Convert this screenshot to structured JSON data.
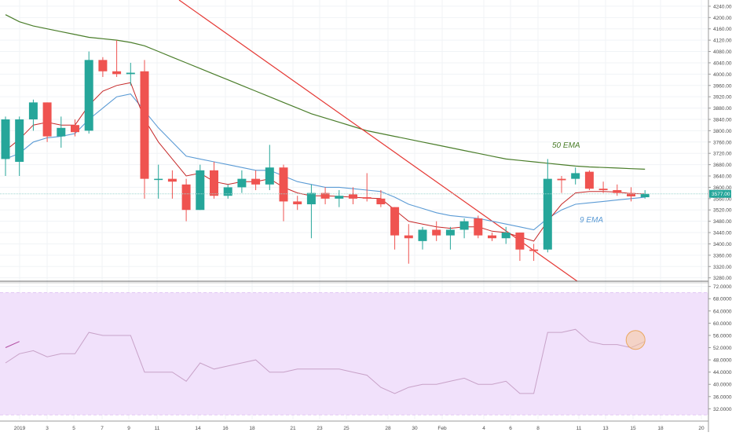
{
  "chart_data": [
    {
      "type": "candlestick",
      "title": "",
      "y_ticks": [
        3280,
        3320,
        3360,
        3400,
        3440,
        3480,
        3520,
        3560,
        3600,
        3640,
        3680,
        3720,
        3760,
        3800,
        3840,
        3880,
        3920,
        3960,
        4000,
        4040,
        4080,
        4120,
        4160,
        4200,
        4240
      ],
      "y_tick_labels": [
        "3280.00",
        "3320.00",
        "3360.00",
        "3400.00",
        "3440.00",
        "3480.00",
        "3520.00",
        "3560.00",
        "3600.00",
        "3640.00",
        "3680.00",
        "3720.00",
        "3760.00",
        "3800.00",
        "3840.00",
        "3880.00",
        "3920.00",
        "3960.00",
        "4000.00",
        "4040.00",
        "4080.00",
        "4120.00",
        "4160.00",
        "4200.00",
        "4240.00"
      ],
      "ylim": [
        3268,
        4262
      ],
      "current_price": 3577,
      "current_price_label": "3577.00",
      "colors": {
        "up": "#26a69a",
        "down": "#ef5350",
        "ema9": "#5b9bd5",
        "ema50": "#4a7d2a",
        "trendline": "#e53935",
        "ema9_short": "#c62828"
      },
      "candles": [
        {
          "o": 3700,
          "h": 3850,
          "l": 3640,
          "c": 3840
        },
        {
          "o": 3690,
          "h": 3850,
          "l": 3640,
          "c": 3840
        },
        {
          "o": 3840,
          "h": 3910,
          "l": 3800,
          "c": 3900
        },
        {
          "o": 3900,
          "h": 3900,
          "l": 3760,
          "c": 3780
        },
        {
          "o": 3780,
          "h": 3850,
          "l": 3740,
          "c": 3810
        },
        {
          "o": 3820,
          "h": 3840,
          "l": 3780,
          "c": 3795
        },
        {
          "o": 3800,
          "h": 4080,
          "l": 3790,
          "c": 4050
        },
        {
          "o": 4050,
          "h": 4060,
          "l": 3990,
          "c": 4010
        },
        {
          "o": 4010,
          "h": 4120,
          "l": 3990,
          "c": 4000
        },
        {
          "o": 4000,
          "h": 4040,
          "l": 3960,
          "c": 4005
        },
        {
          "o": 4010,
          "h": 4050,
          "l": 3560,
          "c": 3630
        },
        {
          "o": 3630,
          "h": 3680,
          "l": 3560,
          "c": 3630
        },
        {
          "o": 3630,
          "h": 3660,
          "l": 3560,
          "c": 3620
        },
        {
          "o": 3610,
          "h": 3630,
          "l": 3480,
          "c": 3520
        },
        {
          "o": 3520,
          "h": 3680,
          "l": 3520,
          "c": 3660
        },
        {
          "o": 3660,
          "h": 3690,
          "l": 3560,
          "c": 3570
        },
        {
          "o": 3570,
          "h": 3610,
          "l": 3560,
          "c": 3600
        },
        {
          "o": 3600,
          "h": 3660,
          "l": 3580,
          "c": 3630
        },
        {
          "o": 3630,
          "h": 3660,
          "l": 3590,
          "c": 3610
        },
        {
          "o": 3610,
          "h": 3750,
          "l": 3590,
          "c": 3670
        },
        {
          "o": 3670,
          "h": 3680,
          "l": 3480,
          "c": 3550
        },
        {
          "o": 3550,
          "h": 3570,
          "l": 3520,
          "c": 3540
        },
        {
          "o": 3540,
          "h": 3610,
          "l": 3420,
          "c": 3580
        },
        {
          "o": 3580,
          "h": 3600,
          "l": 3540,
          "c": 3560
        },
        {
          "o": 3560,
          "h": 3590,
          "l": 3530,
          "c": 3570
        },
        {
          "o": 3575,
          "h": 3600,
          "l": 3540,
          "c": 3560
        },
        {
          "o": 3565,
          "h": 3650,
          "l": 3550,
          "c": 3560
        },
        {
          "o": 3560,
          "h": 3590,
          "l": 3530,
          "c": 3540
        },
        {
          "o": 3530,
          "h": 3530,
          "l": 3380,
          "c": 3430
        },
        {
          "o": 3430,
          "h": 3470,
          "l": 3330,
          "c": 3420
        },
        {
          "o": 3410,
          "h": 3460,
          "l": 3380,
          "c": 3450
        },
        {
          "o": 3450,
          "h": 3480,
          "l": 3410,
          "c": 3430
        },
        {
          "o": 3430,
          "h": 3460,
          "l": 3380,
          "c": 3450
        },
        {
          "o": 3450,
          "h": 3490,
          "l": 3420,
          "c": 3480
        },
        {
          "o": 3490,
          "h": 3500,
          "l": 3420,
          "c": 3430
        },
        {
          "o": 3430,
          "h": 3440,
          "l": 3410,
          "c": 3420
        },
        {
          "o": 3420,
          "h": 3460,
          "l": 3400,
          "c": 3440
        },
        {
          "o": 3440,
          "h": 3440,
          "l": 3340,
          "c": 3380
        },
        {
          "o": 3380,
          "h": 3400,
          "l": 3340,
          "c": 3375
        },
        {
          "o": 3380,
          "h": 3700,
          "l": 3370,
          "c": 3630
        },
        {
          "o": 3630,
          "h": 3640,
          "l": 3580,
          "c": 3625
        },
        {
          "o": 3630,
          "h": 3670,
          "l": 3610,
          "c": 3650
        },
        {
          "o": 3655,
          "h": 3660,
          "l": 3590,
          "c": 3595
        },
        {
          "o": 3595,
          "h": 3620,
          "l": 3580,
          "c": 3590
        },
        {
          "o": 3590,
          "h": 3610,
          "l": 3570,
          "c": 3580
        },
        {
          "o": 3580,
          "h": 3600,
          "l": 3550,
          "c": 3568
        },
        {
          "o": 3565,
          "h": 3590,
          "l": 3560,
          "c": 3577
        }
      ],
      "ema9": [
        3700,
        3720,
        3760,
        3775,
        3780,
        3790,
        3840,
        3880,
        3920,
        3930,
        3870,
        3810,
        3760,
        3710,
        3700,
        3690,
        3680,
        3670,
        3660,
        3660,
        3640,
        3620,
        3610,
        3600,
        3600,
        3595,
        3590,
        3585,
        3565,
        3540,
        3525,
        3510,
        3500,
        3495,
        3490,
        3480,
        3470,
        3460,
        3450,
        3490,
        3520,
        3540,
        3545,
        3550,
        3555,
        3560,
        3565
      ],
      "ema9_short": [
        3730,
        3770,
        3820,
        3830,
        3820,
        3820,
        3890,
        3940,
        3960,
        3970,
        3840,
        3760,
        3700,
        3640,
        3650,
        3620,
        3610,
        3620,
        3620,
        3630,
        3600,
        3580,
        3570,
        3570,
        3568,
        3565,
        3562,
        3560,
        3520,
        3480,
        3470,
        3460,
        3455,
        3460,
        3460,
        3445,
        3440,
        3425,
        3410,
        3480,
        3540,
        3580,
        3585,
        3585,
        3583,
        3578,
        3577
      ],
      "ema50": [
        4210,
        4185,
        4170,
        4160,
        4150,
        4140,
        4130,
        4125,
        4120,
        4112,
        4100,
        4080,
        4060,
        4040,
        4020,
        4000,
        3980,
        3960,
        3940,
        3920,
        3900,
        3880,
        3860,
        3845,
        3830,
        3815,
        3800,
        3790,
        3780,
        3770,
        3760,
        3750,
        3740,
        3730,
        3720,
        3710,
        3700,
        3695,
        3690,
        3685,
        3680,
        3675,
        3672,
        3670,
        3668,
        3666,
        3664
      ],
      "trendline": {
        "from": 4262,
        "to": 3268
      },
      "labels": {
        "ema50": "50 EMA",
        "ema9": "9 EMA"
      }
    },
    {
      "type": "line",
      "title": "",
      "y_ticks": [
        32,
        36,
        40,
        44,
        48,
        52,
        56,
        60,
        64,
        68,
        72
      ],
      "y_tick_labels": [
        "32.0000",
        "36.0000",
        "40.0000",
        "44.0000",
        "48.0000",
        "52.0000",
        "56.0000",
        "60.0000",
        "64.0000",
        "68.0000",
        "72.0000"
      ],
      "ylim": [
        28.5,
        73.2
      ],
      "band": [
        30,
        70
      ],
      "values": [
        47,
        50,
        51,
        49,
        50,
        50,
        57,
        56,
        56,
        56,
        44,
        44,
        44,
        41,
        47,
        45,
        46,
        47,
        48,
        44,
        44,
        45,
        45,
        45,
        45,
        44,
        43,
        39,
        37,
        39,
        40,
        40,
        41,
        42,
        40,
        40,
        41,
        37,
        37,
        57,
        57,
        58,
        54,
        53,
        53,
        52,
        54
      ],
      "highlight_index": 46,
      "colors": {
        "line": "#c8a2c8",
        "band_fill": "#f1e1fb",
        "band_border": "#e2c8f4",
        "highlight": "#f5c89a"
      }
    }
  ],
  "x_axis": {
    "tick_labels": [
      "2019",
      "3",
      "5",
      "7",
      "9",
      "11",
      "14",
      "16",
      "18",
      "21",
      "23",
      "25",
      "28",
      "30",
      "Feb",
      "4",
      "6",
      "8",
      "11",
      "13",
      "15",
      "18",
      "20"
    ]
  }
}
